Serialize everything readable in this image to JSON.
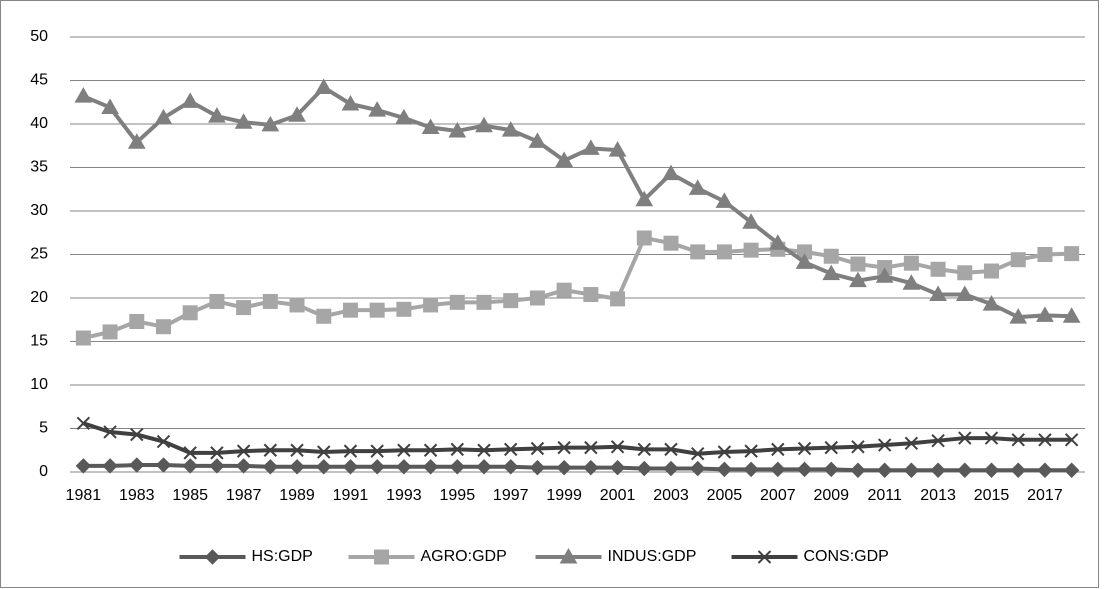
{
  "chart_data": {
    "type": "line",
    "categories": [
      "1981",
      null,
      "1983",
      null,
      "1985",
      null,
      "1987",
      null,
      "1989",
      null,
      "1991",
      null,
      "1993",
      null,
      "1995",
      null,
      "1997",
      null,
      "1999",
      null,
      "2001",
      null,
      "2003",
      null,
      "2005",
      null,
      "2007",
      null,
      "2009",
      null,
      "2011",
      null,
      "2013",
      null,
      "2015",
      null,
      "2017",
      null
    ],
    "series": [
      {
        "name": "HS:GDP",
        "color": "#595959",
        "marker": "diamond",
        "values": [
          0.7,
          0.7,
          0.8,
          0.8,
          0.7,
          0.7,
          0.7,
          0.6,
          0.6,
          0.6,
          0.6,
          0.6,
          0.6,
          0.6,
          0.6,
          0.6,
          0.6,
          0.5,
          0.5,
          0.5,
          0.5,
          0.4,
          0.4,
          0.4,
          0.3,
          0.3,
          0.3,
          0.3,
          0.3,
          0.2,
          0.2,
          0.2,
          0.2,
          0.2,
          0.2,
          0.2,
          0.2,
          0.2
        ]
      },
      {
        "name": "AGRO:GDP",
        "color": "#a6a6a6",
        "marker": "square",
        "values": [
          15.4,
          16.1,
          17.3,
          16.7,
          18.3,
          19.6,
          18.9,
          19.6,
          19.2,
          17.9,
          18.6,
          18.6,
          18.7,
          19.2,
          19.5,
          19.5,
          19.7,
          20.0,
          20.9,
          20.4,
          19.9,
          26.9,
          26.3,
          25.3,
          25.3,
          25.5,
          25.6,
          25.3,
          24.8,
          23.9,
          23.5,
          24.0,
          23.3,
          22.9,
          23.1,
          24.4,
          25.0,
          25.1
        ]
      },
      {
        "name": "INDUS:GDP",
        "color": "#7f7f7f",
        "marker": "triangle",
        "values": [
          43.2,
          41.9,
          37.9,
          40.7,
          42.6,
          40.9,
          40.2,
          39.9,
          41.0,
          44.2,
          42.3,
          41.6,
          40.7,
          39.6,
          39.2,
          39.8,
          39.3,
          38.0,
          35.8,
          37.2,
          37.0,
          31.3,
          34.3,
          32.6,
          31.1,
          28.7,
          26.3,
          24.1,
          22.8,
          22.0,
          22.5,
          21.7,
          20.4,
          20.4,
          19.3,
          17.8,
          18.0,
          17.9
        ]
      },
      {
        "name": "CONS:GDP",
        "color": "#404040",
        "marker": "x",
        "values": [
          5.6,
          4.6,
          4.3,
          3.5,
          2.2,
          2.2,
          2.4,
          2.5,
          2.5,
          2.3,
          2.4,
          2.4,
          2.5,
          2.5,
          2.6,
          2.5,
          2.6,
          2.7,
          2.8,
          2.8,
          2.9,
          2.6,
          2.6,
          2.1,
          2.3,
          2.4,
          2.6,
          2.7,
          2.8,
          2.9,
          3.1,
          3.3,
          3.6,
          3.9,
          3.9,
          3.7,
          3.7,
          3.7
        ]
      }
    ],
    "ylim": [
      0,
      50
    ],
    "yticks": [
      0,
      5,
      10,
      15,
      20,
      25,
      30,
      35,
      40,
      45,
      50
    ],
    "grid": true,
    "legend": "bottom"
  }
}
